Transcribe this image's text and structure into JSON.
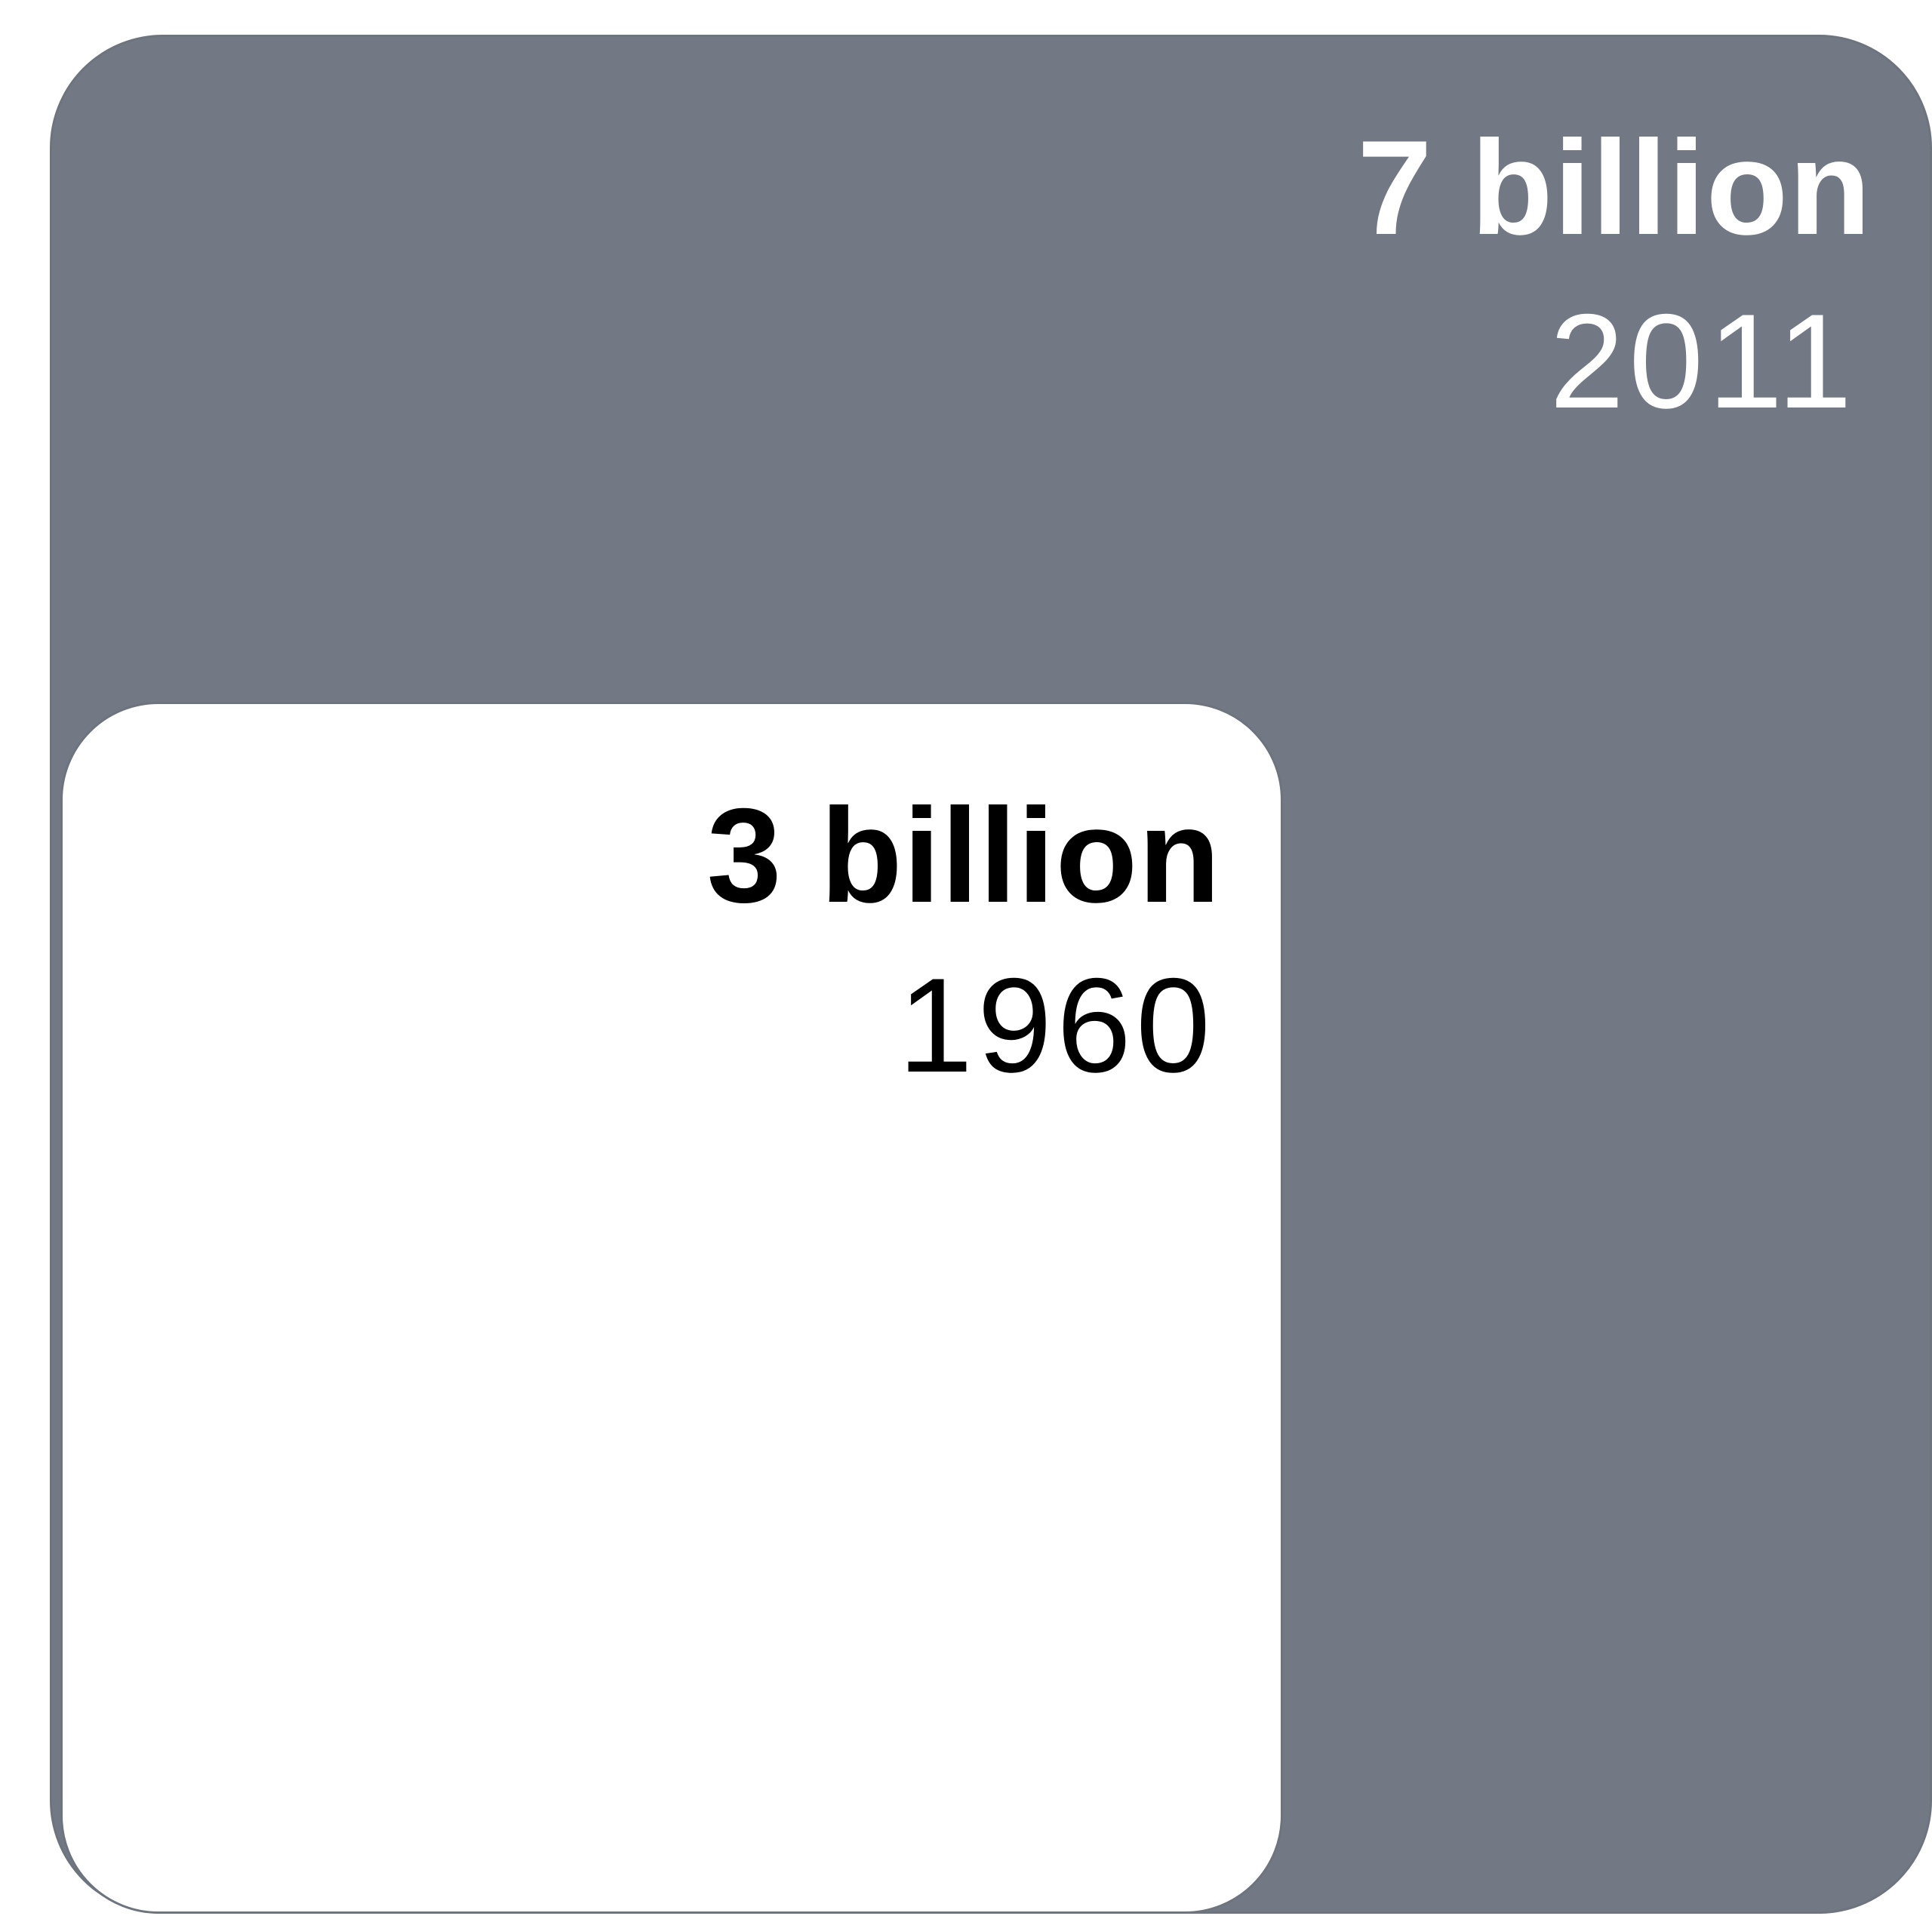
{
  "chart_data": {
    "type": "area",
    "series": [
      {
        "value_label": "7 billion",
        "category": "2011",
        "value": 7000000000,
        "color": "#727984",
        "label_color": "#ffffff"
      },
      {
        "value_label": "3 billion",
        "category": "1960",
        "value": 3000000000,
        "color": "#ffffff",
        "label_color": "#000000"
      }
    ]
  }
}
